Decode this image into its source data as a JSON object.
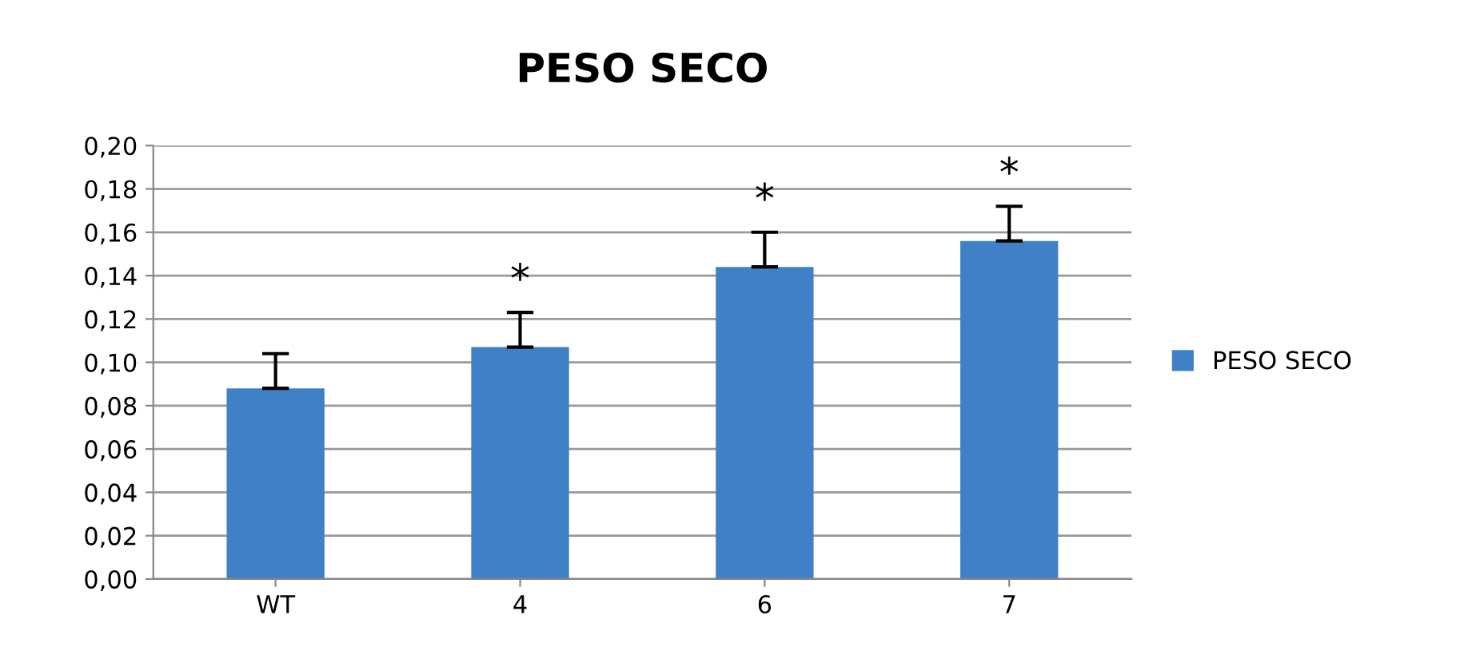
{
  "chart_data": {
    "type": "bar",
    "title": "PESO SECO",
    "categories": [
      "WT",
      "4",
      "6",
      "7"
    ],
    "series": [
      {
        "name": "PESO SECO",
        "color": "#3f80c6",
        "values": [
          0.088,
          0.107,
          0.144,
          0.156
        ],
        "errors": [
          [
            0.088,
            0.104
          ],
          [
            0.107,
            0.123
          ],
          [
            0.144,
            0.16
          ],
          [
            0.156,
            0.172
          ]
        ]
      }
    ],
    "ylim": [
      0,
      0.2
    ],
    "yticks": [
      {
        "value": 0,
        "label": "0,00"
      },
      {
        "value": 0.02,
        "label": "0,02"
      },
      {
        "value": 0.04,
        "label": "0,04"
      },
      {
        "value": 0.06,
        "label": "0,06"
      },
      {
        "value": 0.08,
        "label": "0,08"
      },
      {
        "value": 0.1,
        "label": "0,10"
      },
      {
        "value": 0.12,
        "label": "0,12"
      },
      {
        "value": 0.14,
        "label": "0,14"
      },
      {
        "value": 0.16,
        "label": "0,16"
      },
      {
        "value": 0.18,
        "label": "0,18"
      },
      {
        "value": 0.2,
        "label": "0,20"
      }
    ],
    "annotations": [
      {
        "text": "*",
        "x": "4",
        "y": 0.123
      },
      {
        "text": "*",
        "x": "6",
        "y": 0.16
      },
      {
        "text": "*",
        "x": "7",
        "y": 0.172
      }
    ],
    "grid": "y",
    "legend": "right"
  }
}
